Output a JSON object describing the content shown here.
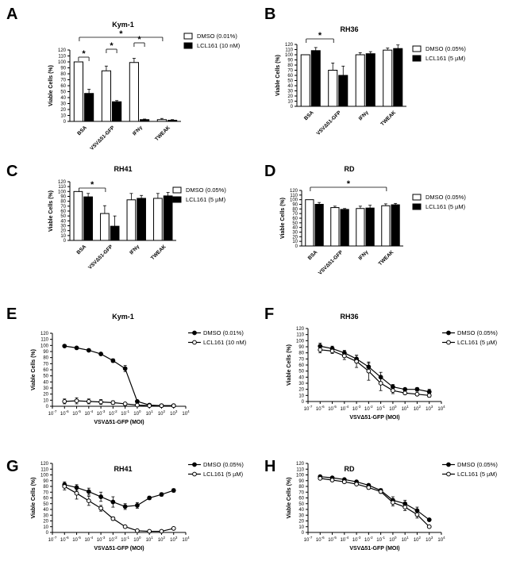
{
  "panels": [
    {
      "id": "A",
      "type": "bar",
      "title": "Kym-1",
      "ylabel": "Viable Cells (%)",
      "ylim": [
        0,
        120
      ],
      "categories": [
        "BSA",
        "VSVΔ51-GFP",
        "IFNγ",
        "TWEAK"
      ],
      "series": [
        {
          "name": "DMSO (0.01%)",
          "values": [
            100,
            85,
            99,
            3
          ],
          "errors": [
            0,
            8,
            7,
            2
          ]
        },
        {
          "name": "LCL161 (10 nM)",
          "values": [
            47,
            33,
            3,
            2
          ],
          "errors": [
            7,
            2,
            1,
            1
          ]
        }
      ],
      "annotations": [
        "*",
        "*",
        "*",
        "*"
      ]
    },
    {
      "id": "B",
      "type": "bar",
      "title": "RH36",
      "ylabel": "Viable Cells (%)",
      "ylim": [
        0,
        120
      ],
      "categories": [
        "BSA",
        "VSVΔ51-GFP",
        "IFNγ",
        "TWEAK"
      ],
      "series": [
        {
          "name": "DMSO (0.05%)",
          "values": [
            100,
            70,
            100,
            109
          ],
          "errors": [
            0,
            14,
            4,
            4
          ]
        },
        {
          "name": "LCL161 (5 µM)",
          "values": [
            108,
            60,
            102,
            112
          ],
          "errors": [
            6,
            18,
            4,
            7
          ]
        }
      ],
      "annotations": [
        "*"
      ]
    },
    {
      "id": "C",
      "type": "bar",
      "title": "RH41",
      "ylabel": "Viable Cells (%)",
      "ylim": [
        0,
        120
      ],
      "categories": [
        "BSA",
        "VSVΔ51-GFP",
        "IFNγ",
        "TWEAK"
      ],
      "series": [
        {
          "name": "DMSO (0.05%)",
          "values": [
            100,
            55,
            83,
            86
          ],
          "errors": [
            0,
            16,
            13,
            10
          ]
        },
        {
          "name": "LCL161 (5 µM)",
          "values": [
            89,
            29,
            86,
            91
          ],
          "errors": [
            7,
            21,
            6,
            7
          ]
        }
      ],
      "annotations": [
        "*"
      ]
    },
    {
      "id": "D",
      "type": "bar",
      "title": "RD",
      "ylabel": "Viable Cells (%)",
      "ylim": [
        0,
        120
      ],
      "categories": [
        "BSA",
        "VSVΔ51-GFP",
        "IFNγ",
        "TWEAK"
      ],
      "series": [
        {
          "name": "DMSO (0.05%)",
          "values": [
            100,
            83,
            81,
            87
          ],
          "errors": [
            0,
            3,
            5,
            4
          ]
        },
        {
          "name": "LCL161 (5 µM)",
          "values": [
            90,
            79,
            82,
            89
          ],
          "errors": [
            4,
            2,
            6,
            3
          ]
        }
      ],
      "annotations": [
        "*"
      ]
    },
    {
      "id": "E",
      "type": "line",
      "title": "Kym-1",
      "ylabel": "Viable Cells (%)",
      "xlabel": "VSVΔ51-GFP (MOI)",
      "ylim": [
        0,
        120
      ],
      "x_log": [
        -6,
        -5,
        -4,
        -3,
        -2,
        -1,
        0,
        1,
        2,
        3
      ],
      "series": [
        {
          "name": "DMSO (0.01%)",
          "filled": true,
          "values": [
            99,
            96,
            92,
            86,
            75,
            62,
            8,
            2,
            1,
            1
          ],
          "errors": [
            0,
            0,
            0,
            2,
            3,
            5,
            2,
            0,
            0,
            0
          ]
        },
        {
          "name": "LCL161 (10 nM)",
          "filled": false,
          "values": [
            8,
            9,
            8,
            7,
            6,
            4,
            2,
            1,
            1,
            1
          ],
          "errors": [
            4,
            5,
            4,
            4,
            3,
            2,
            1,
            0,
            0,
            0
          ]
        }
      ]
    },
    {
      "id": "F",
      "type": "line",
      "title": "RH36",
      "ylabel": "Viable Cells (%)",
      "xlabel": "VSVΔ51-GFP (MOI)",
      "ylim": [
        0,
        120
      ],
      "x_log": [
        -6,
        -5,
        -4,
        -3,
        -2,
        -1,
        0,
        1,
        2,
        3
      ],
      "series": [
        {
          "name": "DMSO (0.05%)",
          "filled": true,
          "values": [
            91,
            87,
            80,
            70,
            57,
            40,
            24,
            20,
            20,
            16
          ],
          "errors": [
            5,
            4,
            4,
            6,
            6,
            8,
            4,
            2,
            3,
            4
          ]
        },
        {
          "name": "LCL161 (5 µM)",
          "filled": false,
          "values": [
            85,
            83,
            75,
            66,
            50,
            30,
            18,
            14,
            12,
            10
          ],
          "errors": [
            5,
            4,
            6,
            10,
            15,
            12,
            5,
            2,
            2,
            3
          ]
        }
      ]
    },
    {
      "id": "G",
      "type": "line",
      "title": "RH41",
      "ylabel": "Viable Cells (%)",
      "xlabel": "VSVΔ51-GFP (MOI)",
      "ylim": [
        0,
        120
      ],
      "x_log": [
        -6,
        -5,
        -4,
        -3,
        -2,
        -1,
        0,
        1,
        2,
        3
      ],
      "series": [
        {
          "name": "DMSO (0.05%)",
          "filled": true,
          "values": [
            83,
            78,
            71,
            62,
            53,
            45,
            47,
            60,
            66,
            73
          ],
          "errors": [
            5,
            5,
            6,
            8,
            9,
            5,
            5,
            3,
            3,
            3
          ]
        },
        {
          "name": "LCL161 (5 µM)",
          "filled": false,
          "values": [
            80,
            68,
            55,
            42,
            24,
            10,
            3,
            2,
            2,
            7
          ],
          "errors": [
            6,
            10,
            8,
            5,
            3,
            2,
            1,
            1,
            1,
            1
          ]
        }
      ]
    },
    {
      "id": "H",
      "type": "line",
      "title": "RD",
      "ylabel": "Viable Cells (%)",
      "xlabel": "VSVΔ51-GFP (MOI)",
      "ylim": [
        0,
        120
      ],
      "x_log": [
        -6,
        -5,
        -4,
        -3,
        -2,
        -1,
        0,
        1,
        2,
        3
      ],
      "series": [
        {
          "name": "DMSO (0.05%)",
          "filled": true,
          "values": [
            97,
            95,
            92,
            88,
            82,
            73,
            56,
            50,
            38,
            22
          ],
          "errors": [
            2,
            2,
            2,
            2,
            2,
            3,
            6,
            6,
            6,
            2
          ]
        },
        {
          "name": "LCL161 (5 µM)",
          "filled": false,
          "values": [
            94,
            91,
            88,
            84,
            78,
            71,
            52,
            44,
            31,
            10
          ],
          "errors": [
            2,
            2,
            2,
            2,
            3,
            3,
            6,
            6,
            6,
            2
          ]
        }
      ]
    }
  ]
}
